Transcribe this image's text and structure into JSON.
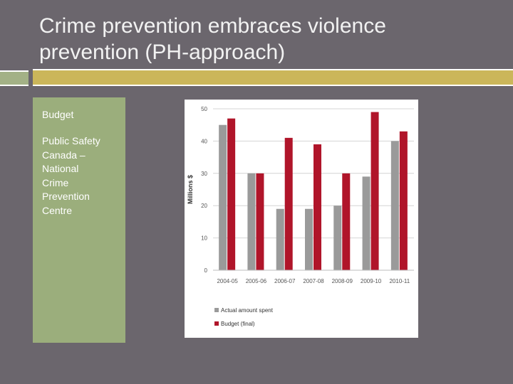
{
  "slide": {
    "title_line1": "Crime prevention embraces violence",
    "title_line2": "prevention (PH-approach)",
    "panel_text1": "Budget",
    "panel_text2_lines": [
      "Public Safety",
      "Canada –",
      "National",
      "Crime",
      "Prevention",
      "Centre"
    ]
  },
  "colors": {
    "background": "#6b666d",
    "panel": "#9bae7c",
    "accent": "#cbb65a",
    "actual": "#9a9a9a",
    "budget": "#b0152a"
  },
  "chart_data": {
    "type": "bar",
    "categories": [
      "2004-05",
      "2005-06",
      "2006-07",
      "2007-08",
      "2008-09",
      "2009-10",
      "2010-11"
    ],
    "series": [
      {
        "name": "Actual amount spent",
        "values": [
          45,
          30,
          19,
          19,
          20,
          29,
          40
        ]
      },
      {
        "name": "Budget (final)",
        "values": [
          47,
          30,
          41,
          39,
          30,
          49,
          43
        ]
      }
    ],
    "title": "",
    "xlabel": "",
    "ylabel": "Millions $",
    "ylim": [
      0,
      50
    ],
    "yticks": [
      "0",
      "10",
      "20",
      "30",
      "40",
      "50"
    ],
    "grid": true,
    "legend": "bottom-left"
  }
}
